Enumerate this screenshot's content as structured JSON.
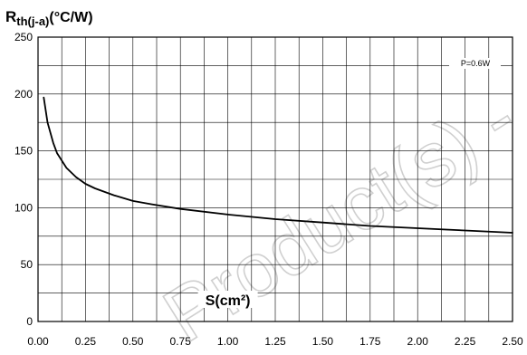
{
  "chart_data": {
    "type": "line",
    "title": "",
    "ylabel_main": "R",
    "ylabel_sub": "th(j-a)",
    "ylabel_unit": "(°C/W)",
    "xlabel": "S(cm²)",
    "xlim": [
      0,
      2.5
    ],
    "ylim": [
      0,
      250
    ],
    "x_ticks": [
      0,
      0.25,
      0.5,
      0.75,
      1.0,
      1.25,
      1.5,
      1.75,
      2.0,
      2.25,
      2.5
    ],
    "x_tick_labels": [
      "0.00",
      "0.25",
      "0.50",
      "0.75",
      "1.00",
      "1.25",
      "1.50",
      "1.75",
      "2.00",
      "2.25",
      "2.50"
    ],
    "y_ticks": [
      0,
      50,
      100,
      150,
      200,
      250
    ],
    "y_tick_labels": [
      "0",
      "50",
      "100",
      "150",
      "200",
      "250"
    ],
    "grid": true,
    "minor_y_step": 25,
    "minor_x_step": 0.125,
    "annotation": "P=0.6W",
    "series": [
      {
        "name": "P=0.6W",
        "x": [
          0.03,
          0.05,
          0.08,
          0.1,
          0.15,
          0.2,
          0.25,
          0.3,
          0.4,
          0.5,
          0.6,
          0.75,
          1.0,
          1.25,
          1.5,
          1.75,
          2.0,
          2.25,
          2.5
        ],
        "y": [
          197,
          175,
          157,
          148,
          135,
          127,
          121,
          117,
          111,
          106,
          103,
          99,
          94,
          90,
          87,
          84,
          82,
          80,
          78
        ]
      }
    ],
    "watermark": "Product(s) -"
  }
}
